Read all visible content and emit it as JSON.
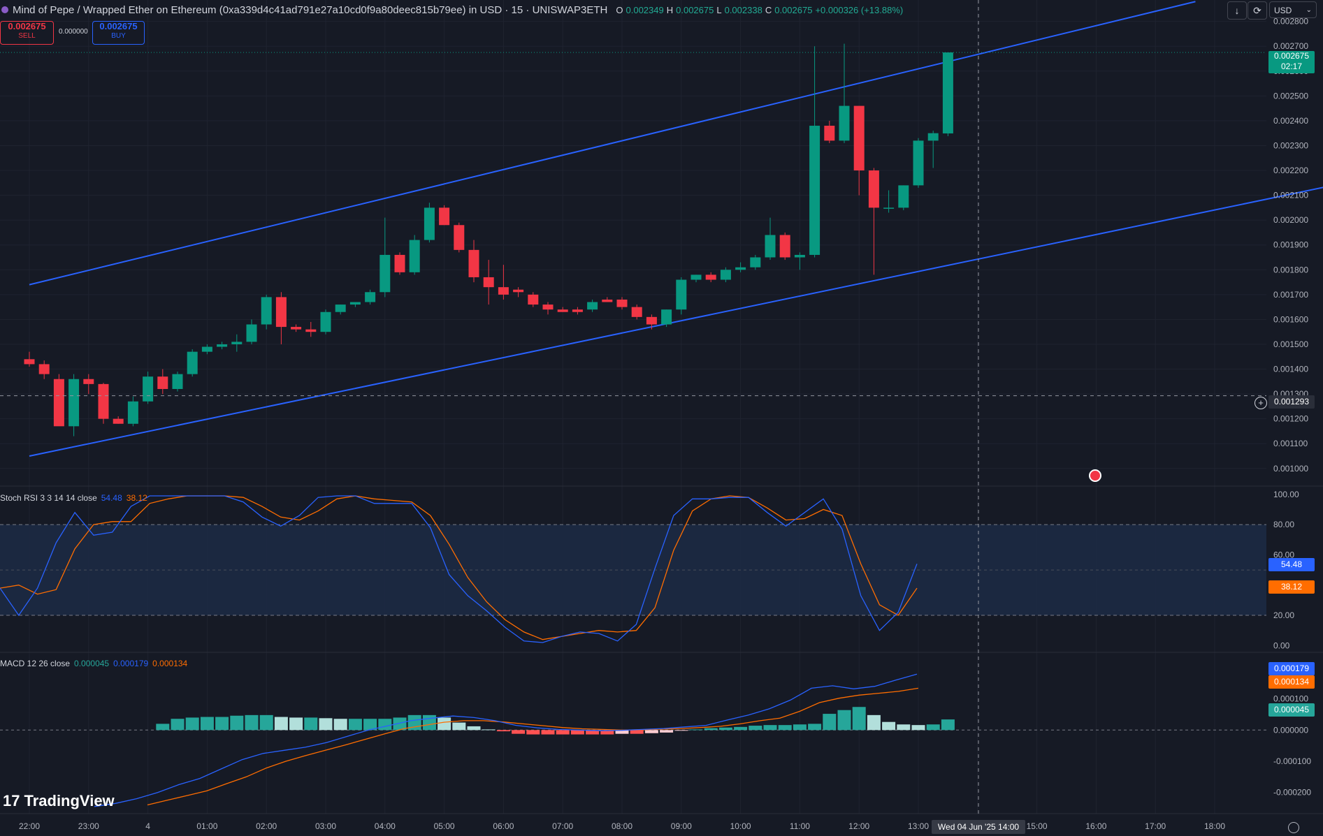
{
  "header": {
    "title": "Mind of Pepe / Wrapped Ether on Ethereum (0xa339d4c41ad791e27a10cd0f9a80deec815b79ee) in USD · 15 · UNISWAP3ETH",
    "ohlc": [
      {
        "k": "O",
        "v": "0.002349"
      },
      {
        "k": "H",
        "v": "0.002675"
      },
      {
        "k": "L",
        "v": "0.002338"
      },
      {
        "k": "C",
        "v": "0.002675"
      }
    ],
    "change": "+0.000326 (+13.88%)",
    "sell_price": "0.002675",
    "sell_label": "SELL",
    "spread": "0.000000",
    "buy_price": "0.002675",
    "buy_label": "BUY",
    "currency": "USD"
  },
  "price_axis": {
    "ticks": [
      "0.002800",
      "0.002700",
      "0.002600",
      "0.002500",
      "0.002400",
      "0.002300",
      "0.002200",
      "0.002100",
      "0.002000",
      "0.001900",
      "0.001800",
      "0.001700",
      "0.001600",
      "0.001500",
      "0.001400",
      "0.001300",
      "0.001200",
      "0.001100",
      "0.001000"
    ],
    "last_price": "0.002675",
    "countdown": "02:17",
    "crosshair_price": "0.001293"
  },
  "time_axis": {
    "labels": [
      "22:00",
      "23:00",
      "4",
      "01:00",
      "02:00",
      "03:00",
      "04:00",
      "05:00",
      "06:00",
      "07:00",
      "08:00",
      "09:00",
      "10:00",
      "11:00",
      "12:00",
      "13:00",
      "14:00",
      "15:00",
      "16:00",
      "17:00",
      "18:00"
    ],
    "crosshair_date": "Wed 04 Jun '25",
    "crosshair_time": "14:00"
  },
  "stoch": {
    "name": "Stoch RSI 3 3 14 14 close",
    "k": "54.48",
    "d": "38.12",
    "ticks": [
      "100.00",
      "80.00",
      "60.00",
      "20.00",
      "0.00"
    ],
    "colors": {
      "k": "#2962ff",
      "d": "#ff6d00",
      "band": "#1c2a44"
    },
    "k_values": [
      38,
      20,
      38,
      68,
      88,
      73,
      75,
      92,
      99,
      99,
      99,
      99,
      99,
      95,
      85,
      79,
      86,
      98,
      99,
      99,
      94,
      94,
      94,
      78,
      47,
      33,
      23,
      12,
      3,
      2,
      6,
      9,
      8,
      3,
      14,
      51,
      86,
      97,
      97,
      98,
      98,
      88,
      79,
      88,
      97,
      77,
      33,
      10,
      22,
      54
    ],
    "d_values": [
      38,
      40,
      34,
      37,
      64,
      80,
      82,
      82,
      94,
      97,
      99,
      99,
      99,
      98,
      92,
      85,
      83,
      89,
      97,
      99,
      97,
      96,
      95,
      86,
      67,
      45,
      29,
      17,
      9,
      4,
      6,
      8,
      10,
      9,
      10,
      25,
      63,
      89,
      97,
      99,
      98,
      91,
      83,
      84,
      90,
      86,
      54,
      27,
      20,
      38
    ]
  },
  "macd": {
    "name": "MACD 12 26 close",
    "hist": "0.000045",
    "macd": "0.000179",
    "signal": "0.000134",
    "ticks": [
      "0.000200",
      "0.000100",
      "0.000000",
      "-0.000100",
      "-0.000200"
    ],
    "colors": {
      "macd": "#2962ff",
      "signal": "#ff6d00",
      "hist_up": "#26a69a",
      "hist_up_light": "#b2dfdb",
      "hist_down": "#ff5252",
      "hist_down_light": "#ffcdd2"
    }
  },
  "branding": {
    "logo": "TradingView"
  },
  "chart_data": [
    {
      "type": "candlestick",
      "title": "Mind of Pepe / Wrapped Ether on Ethereum · 15",
      "ylim": [
        0.00096,
        0.00283
      ],
      "x_start": "22:00",
      "interval_minutes": 15,
      "candles": [
        {
          "o": 0.00144,
          "h": 0.00147,
          "l": 0.00141,
          "c": 0.00142
        },
        {
          "o": 0.00142,
          "h": 0.001435,
          "l": 0.00136,
          "c": 0.00138
        },
        {
          "o": 0.00136,
          "h": 0.00138,
          "l": 0.00118,
          "c": 0.00117
        },
        {
          "o": 0.00117,
          "h": 0.00138,
          "l": 0.00113,
          "c": 0.00136
        },
        {
          "o": 0.00136,
          "h": 0.00138,
          "l": 0.0013,
          "c": 0.00134
        },
        {
          "o": 0.00134,
          "h": 0.001345,
          "l": 0.00118,
          "c": 0.0012
        },
        {
          "o": 0.0012,
          "h": 0.00121,
          "l": 0.00118,
          "c": 0.00118
        },
        {
          "o": 0.00118,
          "h": 0.00129,
          "l": 0.00117,
          "c": 0.00127
        },
        {
          "o": 0.00127,
          "h": 0.00139,
          "l": 0.00126,
          "c": 0.00137
        },
        {
          "o": 0.00137,
          "h": 0.0014,
          "l": 0.0013,
          "c": 0.00132
        },
        {
          "o": 0.00132,
          "h": 0.00139,
          "l": 0.00131,
          "c": 0.00138
        },
        {
          "o": 0.00138,
          "h": 0.00148,
          "l": 0.00137,
          "c": 0.00147
        },
        {
          "o": 0.00147,
          "h": 0.0015,
          "l": 0.00146,
          "c": 0.00149
        },
        {
          "o": 0.00149,
          "h": 0.00151,
          "l": 0.00148,
          "c": 0.0015
        },
        {
          "o": 0.0015,
          "h": 0.00154,
          "l": 0.00147,
          "c": 0.00151
        },
        {
          "o": 0.00151,
          "h": 0.0016,
          "l": 0.0015,
          "c": 0.00158
        },
        {
          "o": 0.00158,
          "h": 0.0017,
          "l": 0.00156,
          "c": 0.00169
        },
        {
          "o": 0.00169,
          "h": 0.00171,
          "l": 0.0015,
          "c": 0.00157
        },
        {
          "o": 0.00157,
          "h": 0.00158,
          "l": 0.00155,
          "c": 0.00156
        },
        {
          "o": 0.00156,
          "h": 0.00159,
          "l": 0.00153,
          "c": 0.00155
        },
        {
          "o": 0.00155,
          "h": 0.00164,
          "l": 0.00154,
          "c": 0.00163
        },
        {
          "o": 0.00163,
          "h": 0.00166,
          "l": 0.00162,
          "c": 0.00166
        },
        {
          "o": 0.00166,
          "h": 0.00167,
          "l": 0.00165,
          "c": 0.00167
        },
        {
          "o": 0.00167,
          "h": 0.00172,
          "l": 0.00166,
          "c": 0.00171
        },
        {
          "o": 0.00171,
          "h": 0.00201,
          "l": 0.00169,
          "c": 0.00186
        },
        {
          "o": 0.00186,
          "h": 0.00187,
          "l": 0.00178,
          "c": 0.00179
        },
        {
          "o": 0.00179,
          "h": 0.00194,
          "l": 0.00178,
          "c": 0.00192
        },
        {
          "o": 0.00192,
          "h": 0.00207,
          "l": 0.00191,
          "c": 0.00205
        },
        {
          "o": 0.00205,
          "h": 0.00206,
          "l": 0.00198,
          "c": 0.00198
        },
        {
          "o": 0.00198,
          "h": 0.00199,
          "l": 0.00187,
          "c": 0.00188
        },
        {
          "o": 0.00188,
          "h": 0.00192,
          "l": 0.00175,
          "c": 0.00177
        },
        {
          "o": 0.00177,
          "h": 0.00184,
          "l": 0.00166,
          "c": 0.00173
        },
        {
          "o": 0.00173,
          "h": 0.00182,
          "l": 0.00168,
          "c": 0.0017
        },
        {
          "o": 0.00172,
          "h": 0.00173,
          "l": 0.00169,
          "c": 0.00171
        },
        {
          "o": 0.0017,
          "h": 0.00171,
          "l": 0.00165,
          "c": 0.00166
        },
        {
          "o": 0.00166,
          "h": 0.00167,
          "l": 0.00162,
          "c": 0.00164
        },
        {
          "o": 0.00164,
          "h": 0.00165,
          "l": 0.00163,
          "c": 0.00163
        },
        {
          "o": 0.00164,
          "h": 0.00165,
          "l": 0.00162,
          "c": 0.00163
        },
        {
          "o": 0.00164,
          "h": 0.00168,
          "l": 0.00163,
          "c": 0.00167
        },
        {
          "o": 0.00168,
          "h": 0.00169,
          "l": 0.00167,
          "c": 0.00167
        },
        {
          "o": 0.00168,
          "h": 0.00169,
          "l": 0.00164,
          "c": 0.00165
        },
        {
          "o": 0.00165,
          "h": 0.00166,
          "l": 0.0016,
          "c": 0.00161
        },
        {
          "o": 0.00161,
          "h": 0.00162,
          "l": 0.00156,
          "c": 0.00158
        },
        {
          "o": 0.00158,
          "h": 0.00164,
          "l": 0.00157,
          "c": 0.00164
        },
        {
          "o": 0.00164,
          "h": 0.00177,
          "l": 0.00162,
          "c": 0.00176
        },
        {
          "o": 0.00176,
          "h": 0.00178,
          "l": 0.00175,
          "c": 0.00178
        },
        {
          "o": 0.00178,
          "h": 0.00179,
          "l": 0.00175,
          "c": 0.00176
        },
        {
          "o": 0.00176,
          "h": 0.00181,
          "l": 0.00175,
          "c": 0.0018
        },
        {
          "o": 0.0018,
          "h": 0.00183,
          "l": 0.00179,
          "c": 0.00181
        },
        {
          "o": 0.00181,
          "h": 0.00186,
          "l": 0.0018,
          "c": 0.00185
        },
        {
          "o": 0.00185,
          "h": 0.00201,
          "l": 0.00184,
          "c": 0.00194
        },
        {
          "o": 0.00194,
          "h": 0.00195,
          "l": 0.00184,
          "c": 0.00185
        },
        {
          "o": 0.00185,
          "h": 0.00187,
          "l": 0.0018,
          "c": 0.00186
        },
        {
          "o": 0.00186,
          "h": 0.0027,
          "l": 0.00185,
          "c": 0.00238
        },
        {
          "o": 0.00238,
          "h": 0.0024,
          "l": 0.00231,
          "c": 0.00232
        },
        {
          "o": 0.00232,
          "h": 0.00271,
          "l": 0.00231,
          "c": 0.00246
        },
        {
          "o": 0.00246,
          "h": 0.00246,
          "l": 0.0021,
          "c": 0.0022
        },
        {
          "o": 0.0022,
          "h": 0.00221,
          "l": 0.00178,
          "c": 0.00205
        },
        {
          "o": 0.00205,
          "h": 0.00212,
          "l": 0.00203,
          "c": 0.00205
        },
        {
          "o": 0.00205,
          "h": 0.00214,
          "l": 0.00204,
          "c": 0.00214
        },
        {
          "o": 0.00214,
          "h": 0.00233,
          "l": 0.00213,
          "c": 0.00232
        },
        {
          "o": 0.00232,
          "h": 0.00236,
          "l": 0.00221,
          "c": 0.00235
        },
        {
          "o": 0.002349,
          "h": 0.002675,
          "l": 0.002338,
          "c": 0.002675
        }
      ],
      "trendlines": [
        {
          "name": "upper-channel",
          "points": [
            [
              0,
              0.00174
            ],
            [
              78.7,
              0.00288
            ]
          ]
        },
        {
          "name": "lower-channel",
          "points": [
            [
              0,
              0.00105
            ],
            [
              88,
              0.00214
            ]
          ]
        }
      ]
    },
    {
      "type": "line",
      "title": "Stoch RSI 3 3 14 14 close",
      "ylim": [
        -4,
        105
      ],
      "bands": [
        20,
        80
      ],
      "series": [
        {
          "name": "K"
        },
        {
          "name": "D"
        }
      ]
    },
    {
      "type": "bar",
      "title": "MACD 12 26 close",
      "ylim": [
        -0.00025,
        0.00022
      ],
      "histogram": [
        2e-05,
        3.6e-05,
        4e-05,
        4.2e-05,
        4.2e-05,
        4.6e-05,
        4.8e-05,
        4.8e-05,
        4.2e-05,
        4e-05,
        4e-05,
        3.8e-05,
        3.6e-05,
        3.6e-05,
        3.6e-05,
        3.6e-05,
        4e-05,
        4.8e-05,
        4.8e-05,
        4e-05,
        2.4e-05,
        1.2e-05,
        2e-06,
        -4e-06,
        -1.2e-05,
        -1.4e-05,
        -1.4e-05,
        -1.4e-05,
        -1.4e-05,
        -1.4e-05,
        -1.4e-05,
        -1.2e-05,
        -1.2e-05,
        -1e-05,
        -8e-06,
        -2e-06,
        2e-06,
        6e-06,
        8e-06,
        1e-05,
        1.4e-05,
        1.6e-05,
        1.6e-05,
        1.8e-05,
        2e-05,
        5.2e-05,
        6.4e-05,
        7.4e-05,
        4.8e-05,
        2.6e-05,
        1.8e-05,
        1.6e-05,
        1.8e-05,
        3.4e-05
      ],
      "histogram_x_start": 9,
      "macd_values": [
        -0.000245,
        -0.000235,
        -0.00022,
        -0.0002,
        -0.000175,
        -0.000155,
        -0.000125,
        -9.5e-05,
        -7.5e-05,
        -6.5e-05,
        -5.5e-05,
        -4e-05,
        -2e-05,
        0.0,
        1.5e-05,
        3e-05,
        3.8e-05,
        4.5e-05,
        4e-05,
        3e-05,
        1.5e-05,
        7e-06,
        2e-06,
        0.0,
        -2e-06,
        -1e-06,
        2e-06,
        5e-06,
        1e-05,
        1.5e-05,
        3.2e-05,
        4.8e-05,
        6.8e-05,
        9.6e-05,
        0.000134,
        0.000142,
        0.000132,
        0.00014,
        0.00016,
        0.000179
      ],
      "signal_values": [
        -0.00024,
        -0.000225,
        -0.00021,
        -0.000195,
        -0.000172,
        -0.00015,
        -0.000122,
        -0.0001,
        -8.2e-05,
        -6.5e-05,
        -4.8e-05,
        -3e-05,
        -1.2e-05,
        5e-06,
        1.5e-05,
        2.5e-05,
        3e-05,
        3e-05,
        2.6e-05,
        2e-05,
        1.4e-05,
        8e-06,
        4e-06,
        2e-06,
        0.0,
        1e-06,
        3e-06,
        5e-06,
        8e-06,
        1.2e-05,
        2e-05,
        3e-05,
        3.8e-05,
        6e-05,
        8.8e-05,
        0.000102,
        0.000112,
        0.000118,
        0.000124,
        0.000134
      ],
      "series": [
        {
          "name": "Histogram"
        },
        {
          "name": "MACD"
        },
        {
          "name": "Signal"
        }
      ]
    }
  ]
}
